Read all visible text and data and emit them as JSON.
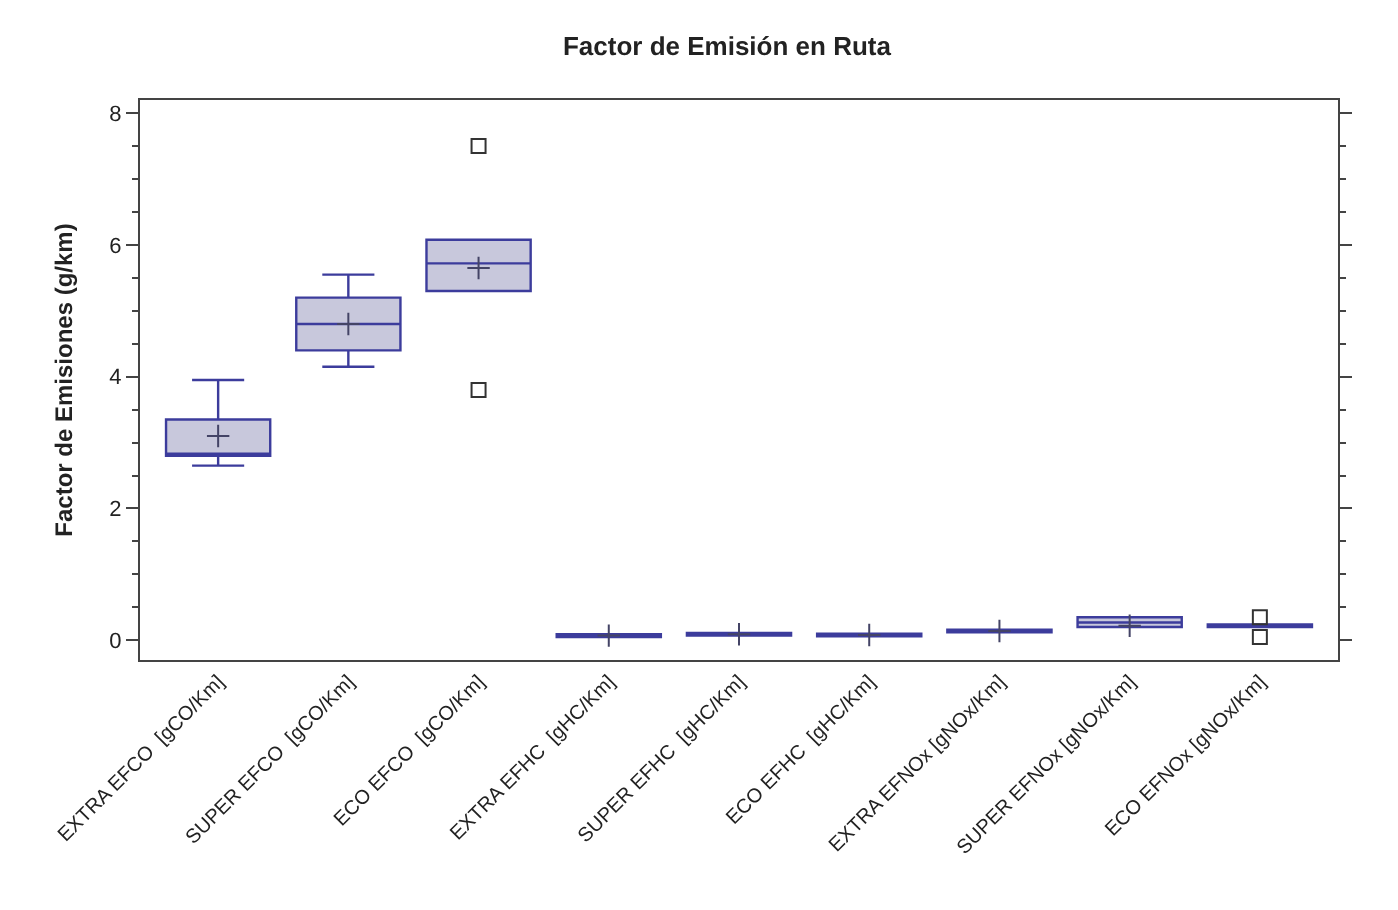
{
  "chart_data": {
    "type": "box",
    "title": "Factor de Emisión en Ruta",
    "ylabel": "Factor de Emisiones (g/km)",
    "categories": [
      "EXTRA EFCO  [gCO/Km]",
      "SUPER EFCO  [gCO/Km]",
      "ECO EFCO  [gCO/Km]",
      "EXTRA EFHC  [gHC/Km]",
      "SUPER EFHC  [gHC/Km]",
      "ECO EFHC  [gHC/Km]",
      "EXTRA EFNOx [gNOx/Km]",
      "SUPER EFNOx [gNOx/Km]",
      "ECO EFNOx [gNOx/Km]"
    ],
    "boxes": [
      {
        "low": 2.65,
        "q1": 2.8,
        "median": 2.83,
        "q3": 3.35,
        "high": 3.95,
        "mean": 3.1
      },
      {
        "low": 4.15,
        "q1": 4.4,
        "median": 4.8,
        "q3": 5.2,
        "high": 5.55,
        "mean": 4.8
      },
      {
        "low": 5.3,
        "q1": 5.3,
        "median": 5.72,
        "q3": 6.08,
        "high": 6.08,
        "mean": 5.65,
        "outliers": [
          7.5,
          3.8
        ]
      },
      {
        "low": 0.05,
        "q1": 0.05,
        "median": 0.07,
        "q3": 0.09,
        "high": 0.09,
        "mean": 0.07
      },
      {
        "low": 0.07,
        "q1": 0.07,
        "median": 0.09,
        "q3": 0.11,
        "high": 0.11,
        "mean": 0.09
      },
      {
        "low": 0.06,
        "q1": 0.06,
        "median": 0.08,
        "q3": 0.1,
        "high": 0.1,
        "mean": 0.08
      },
      {
        "low": 0.12,
        "q1": 0.12,
        "median": 0.14,
        "q3": 0.16,
        "high": 0.16,
        "mean": 0.14
      },
      {
        "low": 0.2,
        "q1": 0.2,
        "median": 0.27,
        "q3": 0.35,
        "high": 0.35,
        "mean": 0.22
      },
      {
        "low": 0.2,
        "q1": 0.2,
        "median": 0.22,
        "q3": 0.24,
        "high": 0.24,
        "outliers": [
          0.35,
          0.05
        ]
      }
    ],
    "color": "#c8c8dc",
    "ylim": [
      -0.3,
      8.2
    ],
    "yticks": [
      0,
      2,
      4,
      6,
      8
    ]
  }
}
